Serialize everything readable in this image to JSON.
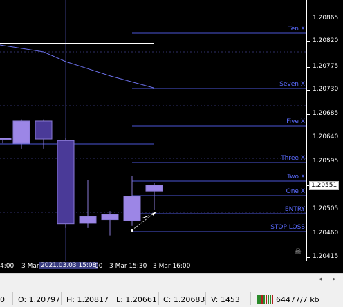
{
  "colors": {
    "background": "#000000",
    "level_line": "#4b56d8",
    "level_text": "#5a6bff",
    "bull_candle": "#9c86e6",
    "bear_candle": "#4a3a98",
    "candle_border": "#8a7ad6",
    "ma_line": "#6a6fe8",
    "white_line": "#ffffff",
    "grid": "#30306a"
  },
  "price_axis": {
    "labels": [
      "1.20865",
      "1.20820",
      "1.20775",
      "1.20730",
      "1.20685",
      "1.20640",
      "1.20595",
      "1.20551",
      "1.20505",
      "1.20460",
      "1.20415"
    ],
    "current_price": "1.20551"
  },
  "levels": [
    {
      "name": "Ten X",
      "price": 1.20837
    },
    {
      "name": "Seven X",
      "price": 1.20733
    },
    {
      "name": "Five X",
      "price": 1.20663
    },
    {
      "name": "Three X",
      "price": 1.20594
    },
    {
      "name": "Two X",
      "price": 1.20559
    },
    {
      "name": "One X",
      "price": 1.20531
    },
    {
      "name": "ENTRY",
      "price": 1.20497
    },
    {
      "name": "STOP LOSS",
      "price": 1.20463
    }
  ],
  "time_axis": {
    "labels": [
      "4:00",
      "3 Mar",
      "3 Mar 15:30",
      "3 Mar 16:00"
    ],
    "highlighted": "2021.03.03 15:08"
  },
  "status_bar": {
    "partial": "0",
    "open": "O: 1.20797",
    "high": "H: 1.20817",
    "low": "L: 1.20661",
    "close": "C: 1.20683",
    "volume": "V: 1453",
    "traffic": "64477/7 kb"
  },
  "scrollbar": {
    "left_arrow": "◂",
    "right_arrow": "▸"
  },
  "icons": {
    "skull": "skull-icon",
    "traffic": "traffic-bars-icon"
  },
  "candles": [
    {
      "open": 1.2064,
      "high": 1.2064,
      "low": 1.2063,
      "close": 1.2064
    },
    {
      "open": 1.2063,
      "high": 1.20675,
      "low": 1.2062,
      "close": 1.20672
    },
    {
      "open": 1.20672,
      "high": 1.20675,
      "low": 1.2062,
      "close": 1.20638
    },
    {
      "open": 1.20635,
      "high": 1.2064,
      "low": 1.2047,
      "close": 1.20478
    },
    {
      "open": 1.20479,
      "high": 1.2056,
      "low": 1.2047,
      "close": 1.20492
    },
    {
      "open": 1.20486,
      "high": 1.20502,
      "low": 1.20456,
      "close": 1.20496
    },
    {
      "open": 1.20484,
      "high": 1.20568,
      "low": 1.20474,
      "close": 1.2053
    },
    {
      "open": 1.2054,
      "high": 1.20555,
      "low": 1.20505,
      "close": 1.20551
    }
  ]
}
